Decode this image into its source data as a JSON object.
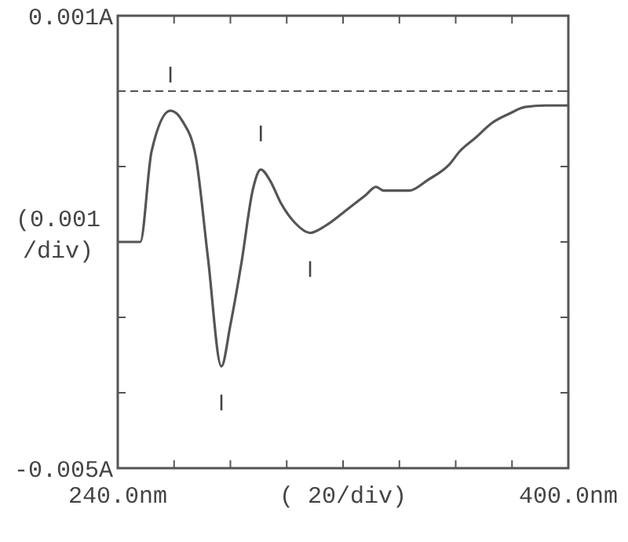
{
  "chart_data": {
    "type": "line",
    "xlabel": "( 20/div)",
    "ylabel": "(0.001 /div)",
    "x": [
      240,
      248,
      252,
      258.7,
      263,
      267.7,
      272,
      276.8,
      280,
      284,
      288,
      290.8,
      294,
      298,
      303,
      308.3,
      314,
      321.8,
      328,
      331.7,
      334.4,
      343.4,
      350,
      357.8,
      361.4,
      367,
      373,
      379,
      384.7,
      392,
      400
    ],
    "series": [
      {
        "color": "#555555",
        "values": [
          -0.002,
          -0.002,
          -0.0008,
          -0.00026,
          -0.0004,
          -0.00087,
          -0.0022,
          -0.00365,
          -0.0031,
          -0.00226,
          -0.0013,
          -0.00104,
          -0.00118,
          -0.00149,
          -0.00175,
          -0.00188,
          -0.00178,
          -0.00156,
          -0.00138,
          -0.00127,
          -0.00132,
          -0.00132,
          -0.00118,
          -0.00097,
          -0.0008,
          -0.00062,
          -0.00042,
          -0.0003,
          -0.00021,
          -0.00019,
          -0.00019
        ]
      }
    ],
    "xlim": [
      240,
      400
    ],
    "ylim": [
      -0.005,
      0.001
    ],
    "xticks": [
      {
        "value": 240,
        "label": "240.0nm"
      },
      {
        "value": 260,
        "label": null
      },
      {
        "value": 280,
        "label": null
      },
      {
        "value": 300,
        "label": null
      },
      {
        "value": 320,
        "label": null
      },
      {
        "value": 340,
        "label": null
      },
      {
        "value": 360,
        "label": null
      },
      {
        "value": 380,
        "label": null
      },
      {
        "value": 400,
        "label": "400.0nm"
      }
    ],
    "yticks": [
      {
        "value": 0.001,
        "label": "0.001A"
      },
      {
        "value": 0,
        "label": null
      },
      {
        "value": -0.001,
        "label": null
      },
      {
        "value": -0.002,
        "label": null
      },
      {
        "value": -0.003,
        "label": null
      },
      {
        "value": -0.004,
        "label": null
      },
      {
        "value": -0.005,
        "label": "-0.005A"
      }
    ],
    "ref_lines": [
      {
        "axis": "y",
        "value": 0,
        "line_style": "dashed"
      }
    ],
    "marker": "none",
    "line_style": "solid"
  }
}
